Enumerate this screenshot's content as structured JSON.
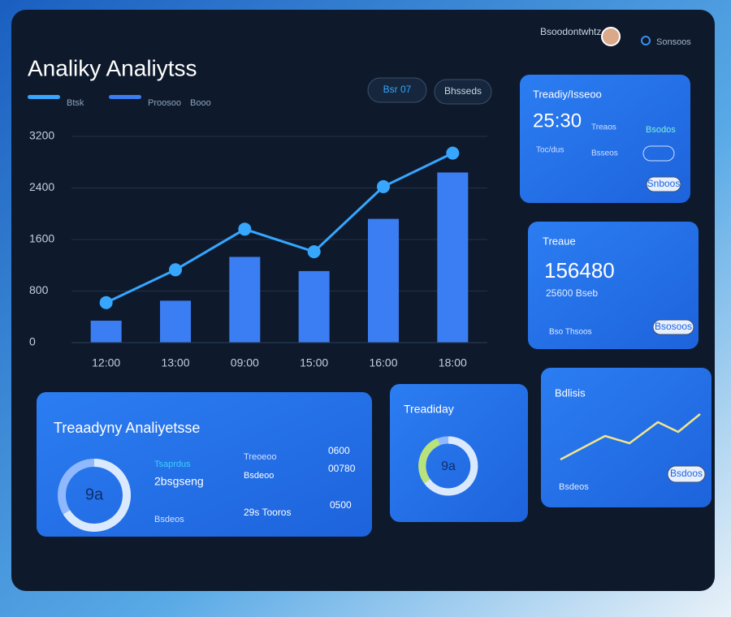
{
  "topbar": {
    "user": "Bsoodontwhtz",
    "menu": "Sonsoos"
  },
  "header": {
    "title": "Analiky Analiytss",
    "legend_extra": "Booo",
    "buttons": [
      "Bsr 07",
      "Bhsseds"
    ]
  },
  "chart_data": {
    "type": "bar",
    "categories": [
      "12:00",
      "13:00",
      "09:00",
      "15:00",
      "16:00",
      "18:00"
    ],
    "series": [
      {
        "name": "Btsk",
        "color": "#36a6ff",
        "type": "line",
        "values": [
          620,
          1130,
          1760,
          1410,
          2420,
          2940
        ]
      },
      {
        "name": "Proosoo",
        "color": "#3b7df2",
        "type": "bar",
        "values": [
          340,
          650,
          1330,
          1110,
          1920,
          2640
        ]
      }
    ],
    "ylim": [
      0,
      3200
    ],
    "yticks": [
      0,
      800,
      1600,
      2400,
      3200
    ],
    "grid": true
  },
  "cards": [
    {
      "title": "Treadiy/Isseoo",
      "value": "25:30",
      "rows": [
        "Treaos",
        "Bsodos",
        "Toc/dus",
        "Bsseos"
      ],
      "button": "Snboos"
    },
    {
      "title": "Treaue",
      "value": "156480",
      "rows": [
        "25600 Bseb",
        "Bso Thsoos"
      ],
      "button": "Bsosoos"
    },
    {
      "title": "Treaadyny Analiyetsse",
      "donut": "9a",
      "rows": [
        "Tsaprdus",
        "2bsgseng",
        "Bsdeos",
        "Treoeoo",
        "Bsdeoo",
        "29s Tooros",
        "0600",
        "00780",
        "0500"
      ]
    },
    {
      "title": "Treadiday",
      "donut": "9a"
    },
    {
      "title": "Bdlisis",
      "rows": [
        "Bsdeos"
      ],
      "button": "Bsdoos"
    }
  ]
}
